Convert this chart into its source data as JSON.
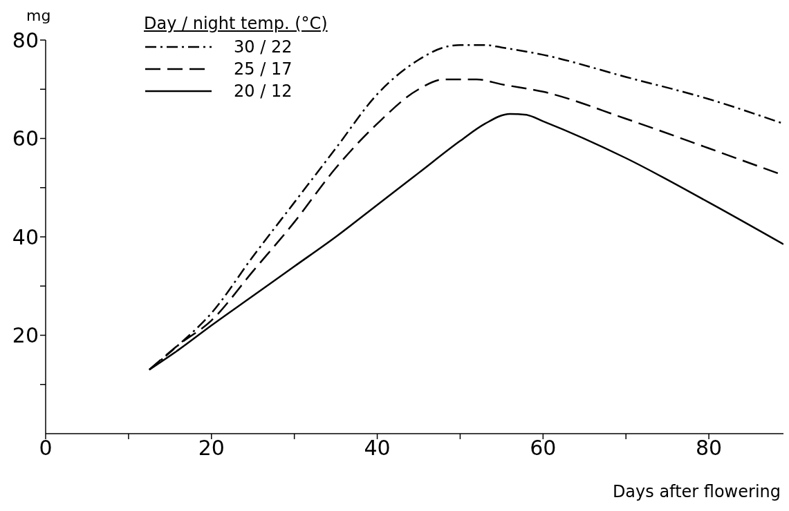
{
  "chart_data": {
    "type": "line",
    "xlabel": "Days after flowering",
    "ylabel": "mg",
    "legend_title": "Day / night temp. (°C)",
    "legend": "top left",
    "marker": "none",
    "xlim": [
      0,
      89
    ],
    "xticks": [
      0,
      {
        "value": 10,
        "label": null
      },
      20,
      {
        "value": 30,
        "label": null
      },
      40,
      {
        "value": 50,
        "label": null
      },
      60,
      {
        "value": 70,
        "label": null
      },
      80
    ],
    "ylim": [
      0,
      80
    ],
    "yticks": [
      {
        "value": 10,
        "label": null
      },
      20,
      {
        "value": 30,
        "label": null
      },
      40,
      {
        "value": 50,
        "label": null
      },
      60,
      {
        "value": 70,
        "label": null
      },
      80
    ],
    "series": [
      {
        "name": "30 / 22",
        "color": "#000000",
        "line_style": "dashdot",
        "x": [
          12.5,
          16,
          20,
          25,
          30,
          35,
          40,
          45,
          48,
          50,
          53,
          55,
          60,
          70,
          80,
          89
        ],
        "values": [
          13,
          18,
          24.5,
          36,
          47,
          58,
          69,
          76,
          78.5,
          79,
          79,
          78.5,
          77,
          72.5,
          68,
          63
        ]
      },
      {
        "name": "25 / 17",
        "color": "#000000",
        "line_style": "dashed",
        "x": [
          12.5,
          16,
          20,
          25,
          30,
          35,
          40,
          45,
          48,
          52,
          55,
          60,
          70,
          80,
          89
        ],
        "values": [
          13,
          18,
          23,
          33,
          43,
          54,
          63,
          70,
          72,
          72,
          71,
          69.5,
          64,
          58,
          52.5
        ]
      },
      {
        "name": "20 / 12",
        "color": "#000000",
        "line_style": "solid",
        "x": [
          12.5,
          16,
          20,
          25,
          30,
          35,
          40,
          45,
          50,
          53,
          56,
          58,
          60,
          70,
          80,
          89
        ],
        "values": [
          13,
          17,
          22,
          28,
          34,
          40,
          46.5,
          53,
          59.5,
          63,
          65,
          64.8,
          63.5,
          56,
          47,
          38.5
        ]
      }
    ]
  }
}
